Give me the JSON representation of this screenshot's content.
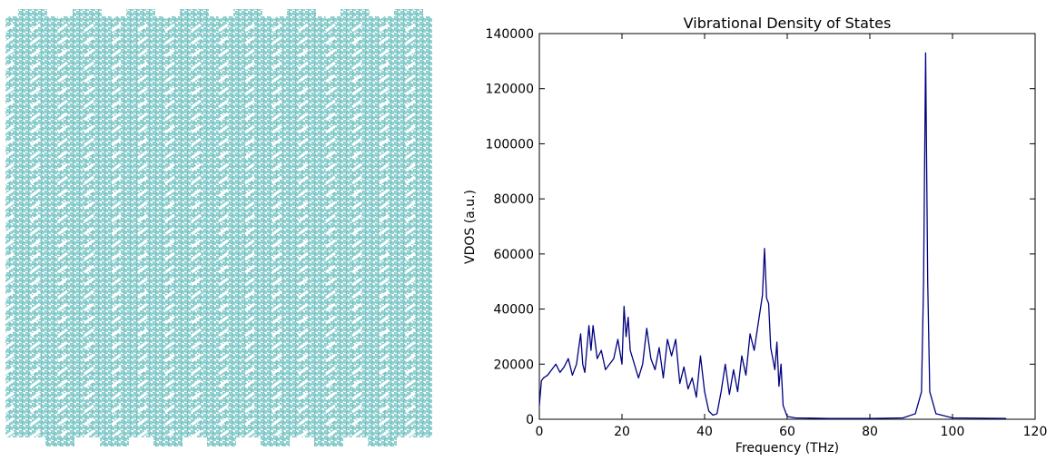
{
  "chart_data": {
    "type": "line",
    "title": "Vibrational Density of States",
    "xlabel": "Frequency (THz)",
    "ylabel": "VDOS (a.u.)",
    "color": "#000080",
    "x": [
      0,
      0.5,
      1,
      2,
      3,
      4,
      5,
      6,
      7,
      8,
      9,
      10,
      10.5,
      11,
      12,
      12.5,
      13,
      14,
      15,
      16,
      17,
      18,
      19,
      20,
      20.5,
      21,
      21.5,
      22,
      23,
      24,
      25,
      26,
      27,
      28,
      29,
      30,
      31,
      32,
      33,
      34,
      35,
      36,
      37,
      38,
      39,
      40,
      41,
      42,
      43,
      44,
      45,
      46,
      47,
      48,
      49,
      50,
      51,
      52,
      53,
      54,
      54.5,
      55,
      55.5,
      56,
      57,
      57.5,
      58,
      58.5,
      59,
      60,
      62,
      70,
      80,
      88,
      91,
      92.5,
      93,
      93.5,
      94,
      94.5,
      96,
      100,
      113
    ],
    "values": [
      5000,
      14000,
      15000,
      16000,
      18000,
      20000,
      17000,
      19000,
      22000,
      16000,
      20000,
      31000,
      20000,
      17000,
      34000,
      25000,
      34000,
      22000,
      25000,
      18000,
      20000,
      22000,
      29000,
      20000,
      41000,
      30000,
      37000,
      25000,
      20000,
      15000,
      20000,
      33000,
      22000,
      18000,
      26000,
      15000,
      29000,
      23000,
      29000,
      13000,
      19000,
      11000,
      15000,
      8000,
      23000,
      10000,
      3000,
      1500,
      2000,
      10000,
      20000,
      9000,
      18000,
      10000,
      23000,
      16000,
      31000,
      25000,
      35000,
      45000,
      62000,
      44000,
      42000,
      26000,
      18000,
      28000,
      12000,
      20000,
      5000,
      1000,
      500,
      300,
      300,
      500,
      2000,
      10000,
      50000,
      133000,
      50000,
      10000,
      2000,
      500,
      300
    ],
    "xlim": [
      0,
      120
    ],
    "xticks": [
      0,
      20,
      40,
      60,
      80,
      100,
      120
    ],
    "ylim": [
      0,
      140000
    ],
    "yticks": [
      0,
      20000,
      40000,
      60000,
      80000,
      100000,
      120000,
      140000
    ],
    "grid": false
  }
}
